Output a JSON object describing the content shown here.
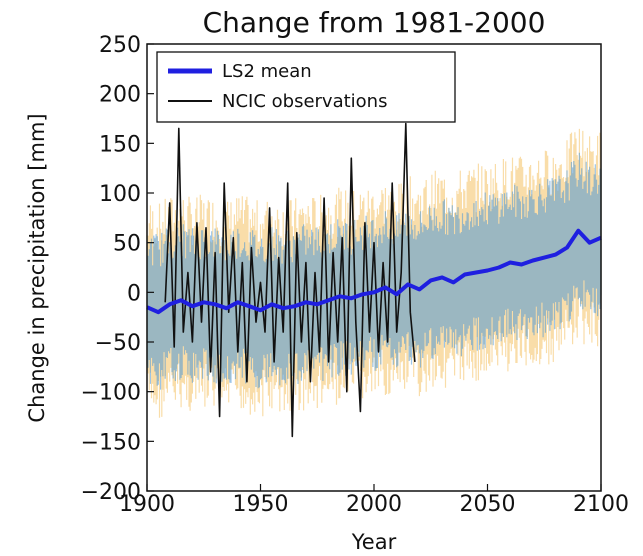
{
  "chart_data": {
    "type": "line",
    "title": "Change from 1981-2000",
    "xlabel": "Year",
    "ylabel": "Change in precipitation [mm]",
    "xlim": [
      1900,
      2100
    ],
    "ylim": [
      -200,
      250
    ],
    "xticks": [
      1900,
      1950,
      2000,
      2050,
      2100
    ],
    "yticks": [
      250,
      200,
      150,
      100,
      50,
      0,
      -50,
      -100,
      -150,
      -200
    ],
    "ytick_labels": [
      "250",
      "200",
      "150",
      "100",
      "50",
      "0",
      "−50",
      "−100",
      "−150",
      "−200"
    ],
    "grid": false,
    "legend_position": "top-left",
    "series": [
      {
        "name": "LS2 mean",
        "color": "#1f1fe0",
        "x": [
          1900,
          1905,
          1910,
          1915,
          1920,
          1925,
          1930,
          1935,
          1940,
          1945,
          1950,
          1955,
          1960,
          1965,
          1970,
          1975,
          1980,
          1985,
          1990,
          1995,
          2000,
          2005,
          2010,
          2015,
          2020,
          2025,
          2030,
          2035,
          2040,
          2045,
          2050,
          2055,
          2060,
          2065,
          2070,
          2075,
          2080,
          2085,
          2090,
          2095,
          2100
        ],
        "values": [
          -15,
          -20,
          -12,
          -8,
          -14,
          -10,
          -12,
          -16,
          -10,
          -14,
          -18,
          -12,
          -16,
          -14,
          -10,
          -12,
          -8,
          -4,
          -6,
          -2,
          0,
          5,
          -2,
          8,
          3,
          12,
          15,
          10,
          18,
          20,
          22,
          25,
          30,
          28,
          32,
          35,
          38,
          45,
          62,
          50,
          55
        ]
      },
      {
        "name": "NCIC observations",
        "color": "#111111",
        "x": [
          1908,
          1910,
          1912,
          1914,
          1916,
          1918,
          1920,
          1922,
          1924,
          1926,
          1928,
          1930,
          1932,
          1934,
          1936,
          1938,
          1940,
          1942,
          1944,
          1946,
          1948,
          1950,
          1952,
          1954,
          1956,
          1958,
          1960,
          1962,
          1964,
          1966,
          1968,
          1970,
          1972,
          1974,
          1976,
          1978,
          1980,
          1982,
          1984,
          1986,
          1988,
          1990,
          1992,
          1994,
          1996,
          1998,
          2000,
          2002,
          2004,
          2006,
          2008,
          2010,
          2012,
          2014,
          2016,
          2018
        ],
        "values": [
          -10,
          90,
          -55,
          165,
          -40,
          20,
          -50,
          70,
          -30,
          65,
          -80,
          40,
          -125,
          110,
          -20,
          55,
          -60,
          30,
          -90,
          45,
          -30,
          10,
          -40,
          85,
          -70,
          35,
          -40,
          110,
          -145,
          60,
          -50,
          30,
          -90,
          20,
          -60,
          95,
          -70,
          40,
          -50,
          55,
          -100,
          135,
          -30,
          -120,
          70,
          -40,
          50,
          -60,
          30,
          -50,
          110,
          -40,
          20,
          170,
          -20,
          -70
        ]
      }
    ],
    "uncertainty_bands": [
      {
        "color": "#f2b441",
        "lower": -110,
        "upper": 110
      },
      {
        "color": "#4f97d6",
        "lower": -80,
        "upper": 80
      }
    ]
  }
}
